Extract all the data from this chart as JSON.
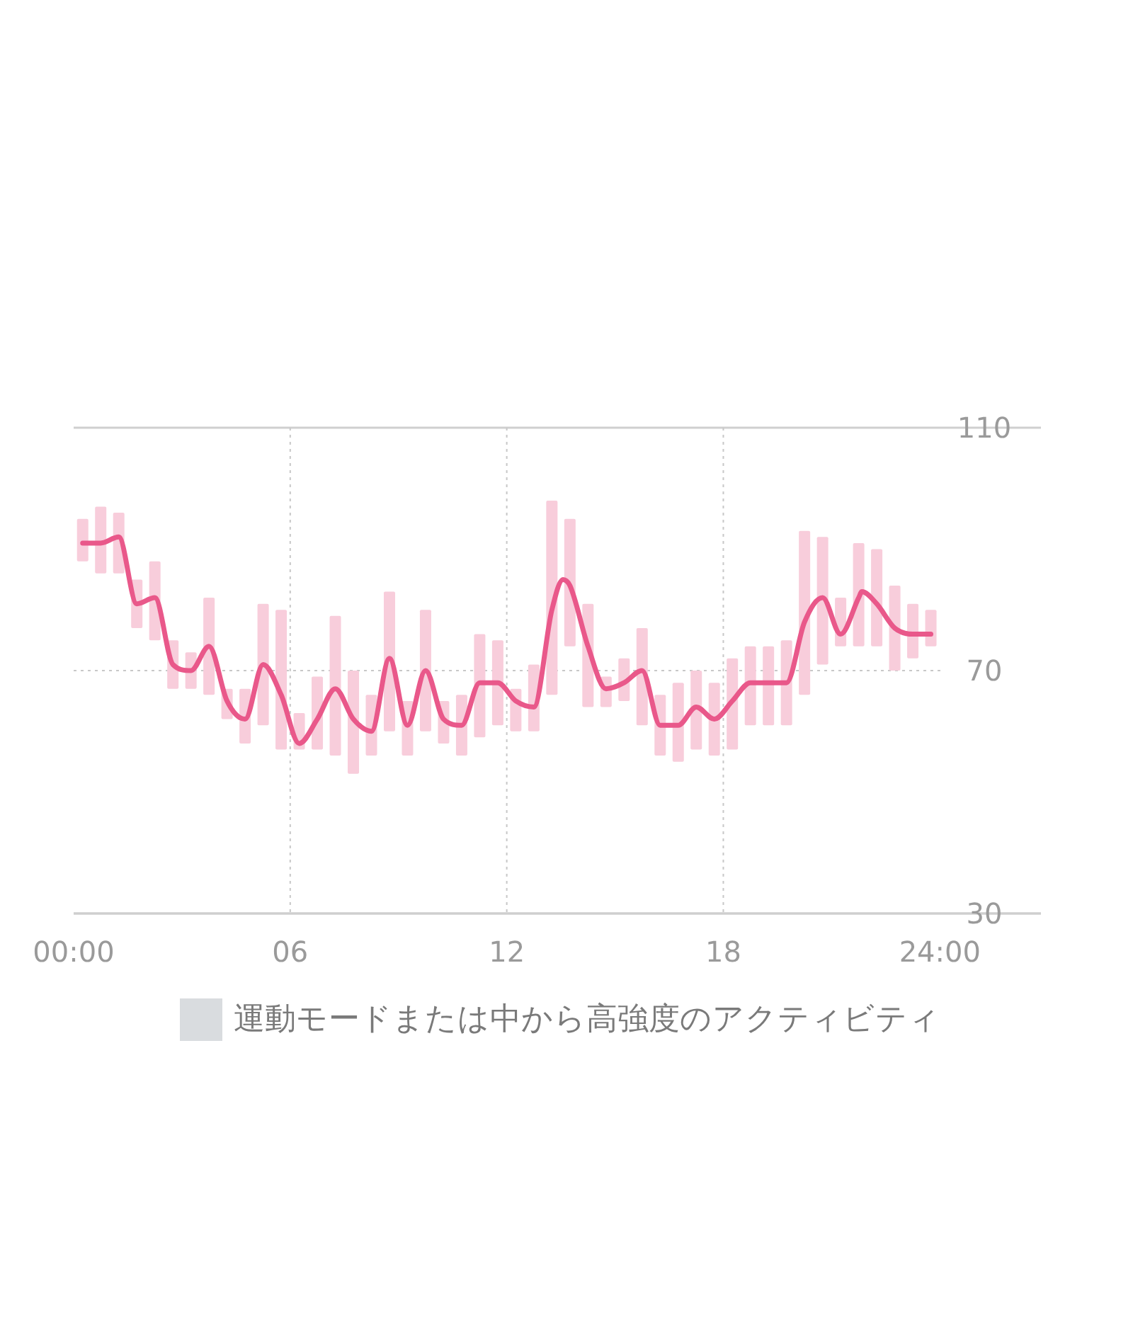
{
  "chart_data": {
    "type": "bar",
    "xlim": [
      0,
      26.8
    ],
    "xticks": [
      {
        "value": 0,
        "label": "00:00"
      },
      {
        "value": 6,
        "label": "06"
      },
      {
        "value": 12,
        "label": "12"
      },
      {
        "value": 18,
        "label": "18"
      },
      {
        "value": 24,
        "label": "24:00"
      }
    ],
    "ylim": [
      30,
      110
    ],
    "yticks": [
      30,
      70,
      110
    ],
    "grid": true,
    "legend": "bottom",
    "x": [
      0.25,
      0.75,
      1.25,
      1.75,
      2.25,
      2.75,
      3.25,
      3.75,
      4.25,
      4.75,
      5.25,
      5.75,
      6.25,
      6.75,
      7.25,
      7.75,
      8.25,
      8.75,
      9.25,
      9.75,
      10.25,
      10.75,
      11.25,
      11.75,
      12.25,
      12.75,
      13.25,
      13.75,
      14.25,
      14.75,
      15.25,
      15.75,
      16.25,
      16.75,
      17.25,
      17.75,
      18.25,
      18.75,
      19.25,
      19.75,
      20.25,
      20.75,
      21.25,
      21.75,
      22.25,
      22.75,
      23.25,
      23.75
    ],
    "series": [
      {
        "type": "bar",
        "color": "#f8cddb",
        "base": [
          88,
          86,
          86,
          77,
          75,
          67,
          67,
          66,
          62,
          58,
          61,
          57,
          57,
          57,
          56,
          53,
          56,
          60,
          56,
          60,
          58,
          56,
          59,
          61,
          60,
          60,
          66,
          74,
          64,
          64,
          65,
          61,
          56,
          55,
          57,
          56,
          57,
          61,
          61,
          61,
          66,
          71,
          74,
          74,
          74,
          70,
          72,
          74
        ],
        "values": [
          7,
          11,
          10,
          8,
          13,
          8,
          6,
          16,
          5,
          9,
          20,
          23,
          6,
          12,
          23,
          17,
          10,
          23,
          9,
          20,
          7,
          10,
          17,
          14,
          7,
          11,
          32,
          21,
          17,
          5,
          7,
          16,
          10,
          13,
          13,
          12,
          15,
          13,
          13,
          14,
          27,
          21,
          8,
          17,
          16,
          14,
          9,
          6
        ]
      },
      {
        "type": "line",
        "color": "#e9588a",
        "x": [
          0.25,
          0.75,
          1.25,
          1.75,
          2.25,
          2.75,
          3.25,
          3.75,
          4.25,
          4.75,
          5.25,
          5.75,
          6.25,
          6.75,
          7.25,
          7.75,
          8.25,
          8.75,
          9.25,
          9.75,
          10.25,
          10.75,
          11.25,
          11.75,
          12.25,
          12.75,
          13.25,
          13.56,
          13.75,
          14.25,
          14.75,
          15.25,
          15.75,
          16.25,
          16.75,
          17.25,
          17.75,
          18.25,
          18.75,
          19.25,
          19.75,
          20.25,
          20.75,
          21.25,
          21.75,
          21.84,
          22.25,
          22.75,
          23.25,
          23.75
        ],
        "values": [
          91,
          91,
          92,
          81,
          82,
          71,
          70,
          74,
          65,
          62,
          71,
          66,
          58,
          62,
          67,
          62,
          60,
          72,
          61,
          70,
          62,
          61,
          68,
          68,
          65,
          64,
          80,
          85,
          84,
          74,
          67,
          68,
          70,
          61,
          61,
          64,
          62,
          65,
          68,
          68,
          68,
          78,
          82,
          76,
          82,
          83,
          81,
          77,
          76,
          76
        ]
      },
      {
        "name": "運動モードまたは中から高強度のアクティビティ",
        "color": "#d9dcdf",
        "values": [
          null,
          null,
          null,
          null,
          null,
          null,
          null,
          null,
          null,
          null,
          null,
          null,
          null,
          null,
          null,
          null,
          null,
          null,
          null,
          null,
          null,
          null,
          null,
          null,
          null,
          null,
          null,
          null,
          null,
          null,
          null,
          null,
          null,
          null,
          null,
          null,
          null,
          null,
          null,
          null,
          null,
          null,
          null,
          null,
          null,
          null,
          null,
          null
        ]
      }
    ]
  }
}
